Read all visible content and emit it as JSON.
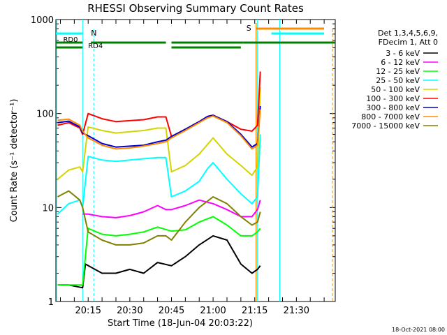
{
  "chart_data": {
    "type": "line",
    "title": "RHESSI Observing Summary Count Rates",
    "xlabel": "Start Time (18-Jun-04 20:03:22)",
    "ylabel": "Count Rate (s⁻¹ detector⁻¹)",
    "y_scale": "log",
    "ylim": [
      1,
      1000
    ],
    "xlim": [
      "20:03:22",
      "21:44:00"
    ],
    "x_tick_labels": [
      "20:15",
      "20:30",
      "20:45",
      "21:00",
      "21:15",
      "21:30"
    ],
    "y_tick_labels": [
      "1",
      "10",
      "100",
      "1000"
    ],
    "legend_position": "right",
    "legend_header": [
      "Det 1,3,4,5,6,9,",
      "FDecim 1, Att 0"
    ],
    "timestamp": "18-Oct-2021 08:00",
    "colors": {
      "3 - 6 keV": "#000000",
      "6 - 12 keV": "#ff00ff",
      "12 - 25 keV": "#00ff00",
      "25 - 50 keV": "#00ffff",
      "50 - 100 keV": "#d4d400",
      "100 - 300 keV": "#ff0000",
      "300 - 800 keV": "#0000cc",
      "800 - 7000 keV": "#ff8c00",
      "7000 - 15000 keV": "#808000"
    },
    "series": [
      {
        "name": "3 - 6 keV",
        "x": [
          "20:04",
          "20:08",
          "20:13",
          "20:14",
          "20:20",
          "20:25",
          "20:30",
          "20:35",
          "20:40",
          "20:45",
          "20:50",
          "20:55",
          "21:00",
          "21:05",
          "21:10",
          "21:14",
          "21:16",
          "21:17"
        ],
        "y": [
          1.5,
          1.5,
          1.4,
          2.5,
          2.0,
          2.0,
          2.2,
          2.0,
          2.6,
          2.4,
          3.0,
          4.0,
          5.0,
          4.5,
          2.5,
          2.0,
          2.2,
          2.4
        ]
      },
      {
        "name": "6 - 12 keV",
        "x": [
          "20:13",
          "20:15",
          "20:20",
          "20:25",
          "20:30",
          "20:35",
          "20:40",
          "20:43",
          "20:45",
          "20:50",
          "20:55",
          "21:00",
          "21:05",
          "21:10",
          "21:14",
          "21:16",
          "21:17"
        ],
        "y": [
          8.5,
          8.5,
          8.0,
          7.8,
          8.2,
          9.0,
          10.5,
          9.5,
          9.5,
          10.5,
          12.0,
          11.0,
          9.5,
          8.0,
          8.0,
          9.5,
          12
        ]
      },
      {
        "name": "12 - 25 keV",
        "x": [
          "20:04",
          "20:10",
          "20:13",
          "20:15",
          "20:20",
          "20:25",
          "20:30",
          "20:35",
          "20:40",
          "20:45",
          "20:50",
          "20:55",
          "21:00",
          "21:05",
          "21:10",
          "21:14",
          "21:16",
          "21:17"
        ],
        "y": [
          1.5,
          1.5,
          1.5,
          6.0,
          5.2,
          5.0,
          5.2,
          5.5,
          6.2,
          5.6,
          5.8,
          7.0,
          8.0,
          6.5,
          5.0,
          5.0,
          5.5,
          6.0
        ]
      },
      {
        "name": "25 - 50 keV",
        "x": [
          "20:04",
          "20:08",
          "20:12",
          "20:13",
          "20:15",
          "20:20",
          "20:25",
          "20:30",
          "20:35",
          "20:40",
          "20:43",
          "20:45",
          "20:50",
          "20:55",
          "20:58",
          "21:00",
          "21:05",
          "21:10",
          "21:14",
          "21:16",
          "21:17"
        ],
        "y": [
          8.5,
          11,
          12,
          10,
          35,
          32,
          31,
          32,
          33,
          34,
          34,
          13,
          15,
          19,
          26,
          30,
          20,
          14,
          11,
          13,
          60
        ]
      },
      {
        "name": "50 - 100 keV",
        "x": [
          "20:04",
          "20:08",
          "20:12",
          "20:13",
          "20:15",
          "20:20",
          "20:25",
          "20:30",
          "20:35",
          "20:40",
          "20:43",
          "20:45",
          "20:50",
          "20:55",
          "20:58",
          "21:00",
          "21:05",
          "21:10",
          "21:14",
          "21:16",
          "21:17"
        ],
        "y": [
          20,
          25,
          27,
          24,
          72,
          66,
          62,
          64,
          66,
          70,
          70,
          24,
          28,
          37,
          47,
          55,
          37,
          28,
          22,
          27,
          190
        ]
      },
      {
        "name": "100 - 300 keV",
        "x": [
          "20:04",
          "20:08",
          "20:12",
          "20:13",
          "20:15",
          "20:20",
          "20:25",
          "20:30",
          "20:35",
          "20:40",
          "20:43",
          "20:45",
          "20:50",
          "20:55",
          "20:58",
          "21:00",
          "21:05",
          "21:10",
          "21:14",
          "21:16",
          "21:17"
        ],
        "y": [
          75,
          80,
          70,
          60,
          100,
          88,
          82,
          84,
          86,
          92,
          92,
          57,
          68,
          82,
          93,
          96,
          82,
          68,
          65,
          75,
          280
        ]
      },
      {
        "name": "300 - 800 keV",
        "x": [
          "20:04",
          "20:08",
          "20:12",
          "20:13",
          "20:15",
          "20:20",
          "20:25",
          "20:30",
          "20:35",
          "20:40",
          "20:43",
          "20:45",
          "20:50",
          "20:55",
          "20:58",
          "21:00",
          "21:05",
          "21:10",
          "21:14",
          "21:16",
          "21:17"
        ],
        "y": [
          80,
          83,
          72,
          62,
          58,
          48,
          44,
          45,
          46,
          50,
          52,
          57,
          68,
          82,
          93,
          96,
          82,
          60,
          44,
          48,
          120
        ]
      },
      {
        "name": "800 - 7000 keV",
        "x": [
          "20:04",
          "20:08",
          "20:12",
          "20:13",
          "20:15",
          "20:20",
          "20:25",
          "20:30",
          "20:35",
          "20:40",
          "20:43",
          "20:45",
          "20:50",
          "20:55",
          "20:58",
          "21:00",
          "21:05",
          "21:10",
          "21:14",
          "21:16",
          "21:17"
        ],
        "y": [
          85,
          87,
          75,
          65,
          55,
          46,
          42,
          43,
          45,
          48,
          50,
          55,
          66,
          80,
          90,
          94,
          80,
          58,
          42,
          46,
          110
        ]
      },
      {
        "name": "7000 - 15000 keV",
        "x": [
          "20:04",
          "20:08",
          "20:12",
          "20:13",
          "20:15",
          "20:20",
          "20:25",
          "20:30",
          "20:35",
          "20:40",
          "20:43",
          "20:45",
          "20:50",
          "20:55",
          "21:00",
          "21:05",
          "21:10",
          "21:14",
          "21:16",
          "21:17"
        ],
        "y": [
          13,
          15,
          12,
          10,
          5.5,
          4.5,
          4.0,
          4.0,
          4.2,
          5.0,
          5.0,
          4.5,
          7.0,
          10,
          13,
          11,
          8.0,
          6.5,
          7.0,
          9.0
        ]
      }
    ],
    "flag_bars": [
      {
        "label": "RD0",
        "color": "#008000"
      },
      {
        "label": "RD4",
        "color": "#008000"
      },
      {
        "label": "N",
        "color": "#00ffff"
      },
      {
        "label": "S",
        "color": "#ff8c00"
      }
    ]
  }
}
